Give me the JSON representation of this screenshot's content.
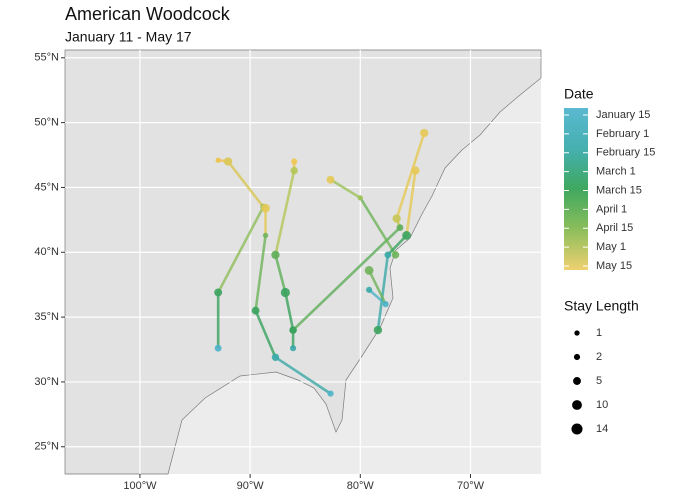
{
  "chart_data": {
    "type": "map",
    "title": "American Woodcock",
    "subtitle": "January 11 - May 17",
    "xlim": [
      -106.8,
      -63.6
    ],
    "ylim": [
      22.9,
      55.6
    ],
    "xticks": [
      {
        "value": -100,
        "label": "100°W"
      },
      {
        "value": -90,
        "label": "90°W"
      },
      {
        "value": -80,
        "label": "80°W"
      },
      {
        "value": -70,
        "label": "70°W"
      }
    ],
    "yticks": [
      {
        "value": 25,
        "label": "25°N"
      },
      {
        "value": 30,
        "label": "30°N"
      },
      {
        "value": 35,
        "label": "35°N"
      },
      {
        "value": 40,
        "label": "40°N"
      },
      {
        "value": 45,
        "label": "45°N"
      },
      {
        "value": 50,
        "label": "50°N"
      },
      {
        "value": 55,
        "label": "55°N"
      }
    ],
    "grid": true,
    "tracks": [
      {
        "lon": [
          -92.9,
          -92.9,
          -88.8,
          -92.0,
          -92.9
        ],
        "lat": [
          32.6,
          36.9,
          43.5,
          47.0,
          47.1
        ],
        "stay": [
          3,
          5,
          2,
          6,
          1
        ],
        "colors": [
          "#4eb3c9",
          "#3aa35e",
          "#8fbe5a",
          "#d9c655",
          "#f0c24e"
        ]
      },
      {
        "lon": [
          -82.7,
          -87.7,
          -89.5,
          -88.6,
          -88.6
        ],
        "lat": [
          29.1,
          31.9,
          35.5,
          41.3,
          43.4
        ],
        "stay": [
          2,
          4,
          5,
          1,
          7
        ],
        "colors": [
          "#4eb3c9",
          "#3aa9a8",
          "#3aa35e",
          "#6fb45a",
          "#e6c955"
        ]
      },
      {
        "lon": [
          -86.1,
          -86.1,
          -86.8,
          -87.7,
          -86.0,
          -86.0
        ],
        "lat": [
          32.6,
          34.0,
          36.9,
          39.8,
          46.3,
          47.0
        ],
        "stay": [
          2,
          4,
          8,
          6,
          4,
          2
        ],
        "colors": [
          "#3aa9a8",
          "#3aa35e",
          "#3aa35e",
          "#5fae5a",
          "#b5c757",
          "#eec650"
        ]
      },
      {
        "lon": [
          -86.1,
          -76.4,
          -76.7,
          -74.2
        ],
        "lat": [
          34.0,
          41.9,
          42.6,
          49.2
        ],
        "stay": [
          4,
          3,
          6,
          6
        ],
        "colors": [
          "#3aa35e",
          "#5fae5a",
          "#c9c656",
          "#e6c955"
        ]
      },
      {
        "lon": [
          -82.7,
          -80.0,
          -76.8
        ],
        "lat": [
          45.6,
          44.2,
          39.8
        ],
        "stay": [
          5,
          1,
          4
        ],
        "colors": [
          "#e6c955",
          "#9cc25a",
          "#6fb45a"
        ]
      },
      {
        "lon": [
          -78.4,
          -77.5,
          -75.8,
          -75.0
        ],
        "lat": [
          34.0,
          39.8,
          41.3,
          46.3
        ],
        "stay": [
          6,
          3,
          7,
          6
        ],
        "colors": [
          "#3aa35e",
          "#3aa9a8",
          "#3aa35e",
          "#e6c955"
        ]
      },
      {
        "lon": [
          -79.2,
          -77.7,
          -79.2
        ],
        "lat": [
          37.1,
          36.0,
          38.6
        ],
        "stay": [
          2,
          2,
          7
        ],
        "colors": [
          "#3aa9a8",
          "#4eb3c9",
          "#6fb45a"
        ]
      }
    ],
    "legend": {
      "date_title": "Date",
      "date_labels": [
        "January 15",
        "February 1",
        "February 15",
        "March 1",
        "March 15",
        "April 1",
        "April 15",
        "May 1",
        "May 15"
      ],
      "date_colors": [
        "#5bb8d0",
        "#45b0b0",
        "#3fa85f",
        "#8cbe5c",
        "#f0d070"
      ],
      "size_title": "Stay Length",
      "sizes": [
        1,
        2,
        5,
        10,
        14
      ]
    }
  }
}
